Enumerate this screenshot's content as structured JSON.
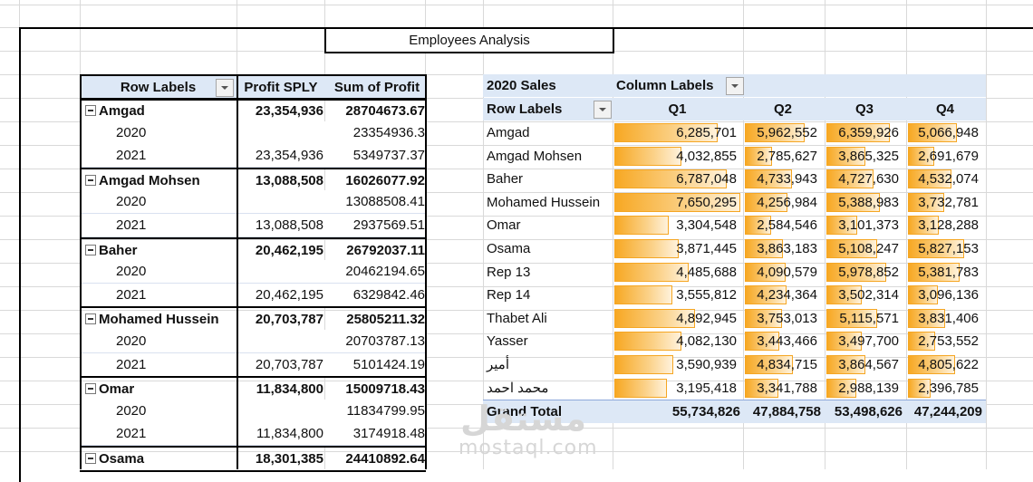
{
  "title": "Employees Analysis",
  "left_pivot": {
    "headers": {
      "row_labels": "Row Labels",
      "profit_sply": "Profit SPLY",
      "sum_profit": "Sum of Profit"
    },
    "rows": [
      {
        "type": "emp",
        "label": "Amgad",
        "sply": "23,354,936",
        "sum": "28704673.67"
      },
      {
        "type": "yr",
        "label": "2020",
        "sply": "",
        "sum": "23354936.3"
      },
      {
        "type": "yr",
        "label": "2021",
        "sply": "23,354,936",
        "sum": "5349737.37"
      },
      {
        "type": "emp",
        "label": "Amgad Mohsen",
        "sply": "13,088,508",
        "sum": "16026077.92"
      },
      {
        "type": "yr",
        "label": "2020",
        "sply": "",
        "sum": "13088508.41"
      },
      {
        "type": "yr",
        "label": "2021",
        "sply": "13,088,508",
        "sum": "2937569.51"
      },
      {
        "type": "emp",
        "label": "Baher",
        "sply": "20,462,195",
        "sum": "26792037.11"
      },
      {
        "type": "yr",
        "label": "2020",
        "sply": "",
        "sum": "20462194.65"
      },
      {
        "type": "yr",
        "label": "2021",
        "sply": "20,462,195",
        "sum": "6329842.46"
      },
      {
        "type": "emp",
        "label": "Mohamed Hussein",
        "sply": "20,703,787",
        "sum": "25805211.32"
      },
      {
        "type": "yr",
        "label": "2020",
        "sply": "",
        "sum": "20703787.13"
      },
      {
        "type": "yr",
        "label": "2021",
        "sply": "20,703,787",
        "sum": "5101424.19"
      },
      {
        "type": "emp",
        "label": "Omar",
        "sply": "11,834,800",
        "sum": "15009718.43"
      },
      {
        "type": "yr",
        "label": "2020",
        "sply": "",
        "sum": "11834799.95"
      },
      {
        "type": "yr",
        "label": "2021",
        "sply": "11,834,800",
        "sum": "3174918.48"
      },
      {
        "type": "emp",
        "label": "Osama",
        "sply": "18,301,385",
        "sum": "24410892.64"
      }
    ]
  },
  "right_pivot": {
    "filter_label": "2020 Sales",
    "column_labels": "Column Labels",
    "row_labels": "Row Labels",
    "quarters": [
      "Q1",
      "Q2",
      "Q3",
      "Q4"
    ],
    "rows": [
      {
        "name": "Amgad",
        "values": [
          "6,285,701",
          "5,962,552",
          "6,359,926",
          "5,066,948"
        ],
        "fill": [
          0.82,
          0.78,
          0.83,
          0.66
        ]
      },
      {
        "name": "Amgad Mohsen",
        "values": [
          "4,032,855",
          "2,785,627",
          "3,865,325",
          "2,691,679"
        ],
        "fill": [
          0.53,
          0.36,
          0.51,
          0.35
        ]
      },
      {
        "name": "Baher",
        "values": [
          "6,787,048",
          "4,733,943",
          "4,727,630",
          "4,532,074"
        ],
        "fill": [
          0.89,
          0.62,
          0.62,
          0.59
        ]
      },
      {
        "name": "Mohamed Hussein",
        "values": [
          "7,650,295",
          "4,256,984",
          "5,388,983",
          "3,732,781"
        ],
        "fill": [
          1.0,
          0.56,
          0.7,
          0.49
        ]
      },
      {
        "name": "Omar",
        "values": [
          "3,304,548",
          "2,584,546",
          "3,101,373",
          "3,128,288"
        ],
        "fill": [
          0.43,
          0.34,
          0.41,
          0.41
        ]
      },
      {
        "name": "Osama",
        "values": [
          "3,871,445",
          "3,863,183",
          "5,108,247",
          "5,827,153"
        ],
        "fill": [
          0.51,
          0.5,
          0.67,
          0.76
        ]
      },
      {
        "name": "Rep 13",
        "values": [
          "4,485,688",
          "4,090,579",
          "5,978,852",
          "5,381,783"
        ],
        "fill": [
          0.59,
          0.53,
          0.78,
          0.7
        ]
      },
      {
        "name": "Rep 14",
        "values": [
          "3,555,812",
          "4,234,364",
          "3,502,314",
          "3,096,136"
        ],
        "fill": [
          0.46,
          0.55,
          0.46,
          0.4
        ]
      },
      {
        "name": "Thabet Ali",
        "values": [
          "4,892,945",
          "3,753,013",
          "5,115,571",
          "3,831,406"
        ],
        "fill": [
          0.64,
          0.49,
          0.67,
          0.5
        ]
      },
      {
        "name": "Yasser",
        "values": [
          "4,082,130",
          "3,443,466",
          "3,497,700",
          "2,753,552"
        ],
        "fill": [
          0.53,
          0.45,
          0.46,
          0.36
        ]
      },
      {
        "name": "أمير",
        "values": [
          "3,590,939",
          "4,834,715",
          "3,864,567",
          "4,805,622"
        ],
        "fill": [
          0.47,
          0.63,
          0.51,
          0.63
        ]
      },
      {
        "name": "محمد احمد",
        "values": [
          "3,195,418",
          "3,341,788",
          "2,988,139",
          "2,396,785"
        ],
        "fill": [
          0.42,
          0.44,
          0.39,
          0.31
        ]
      }
    ],
    "grand_total": {
      "label": "Grand Total",
      "values": [
        "55,734,826",
        "47,884,758",
        "53,498,626",
        "47,244,209"
      ]
    }
  },
  "watermark": {
    "logo": "مستقل",
    "text": "mostaql.com"
  }
}
